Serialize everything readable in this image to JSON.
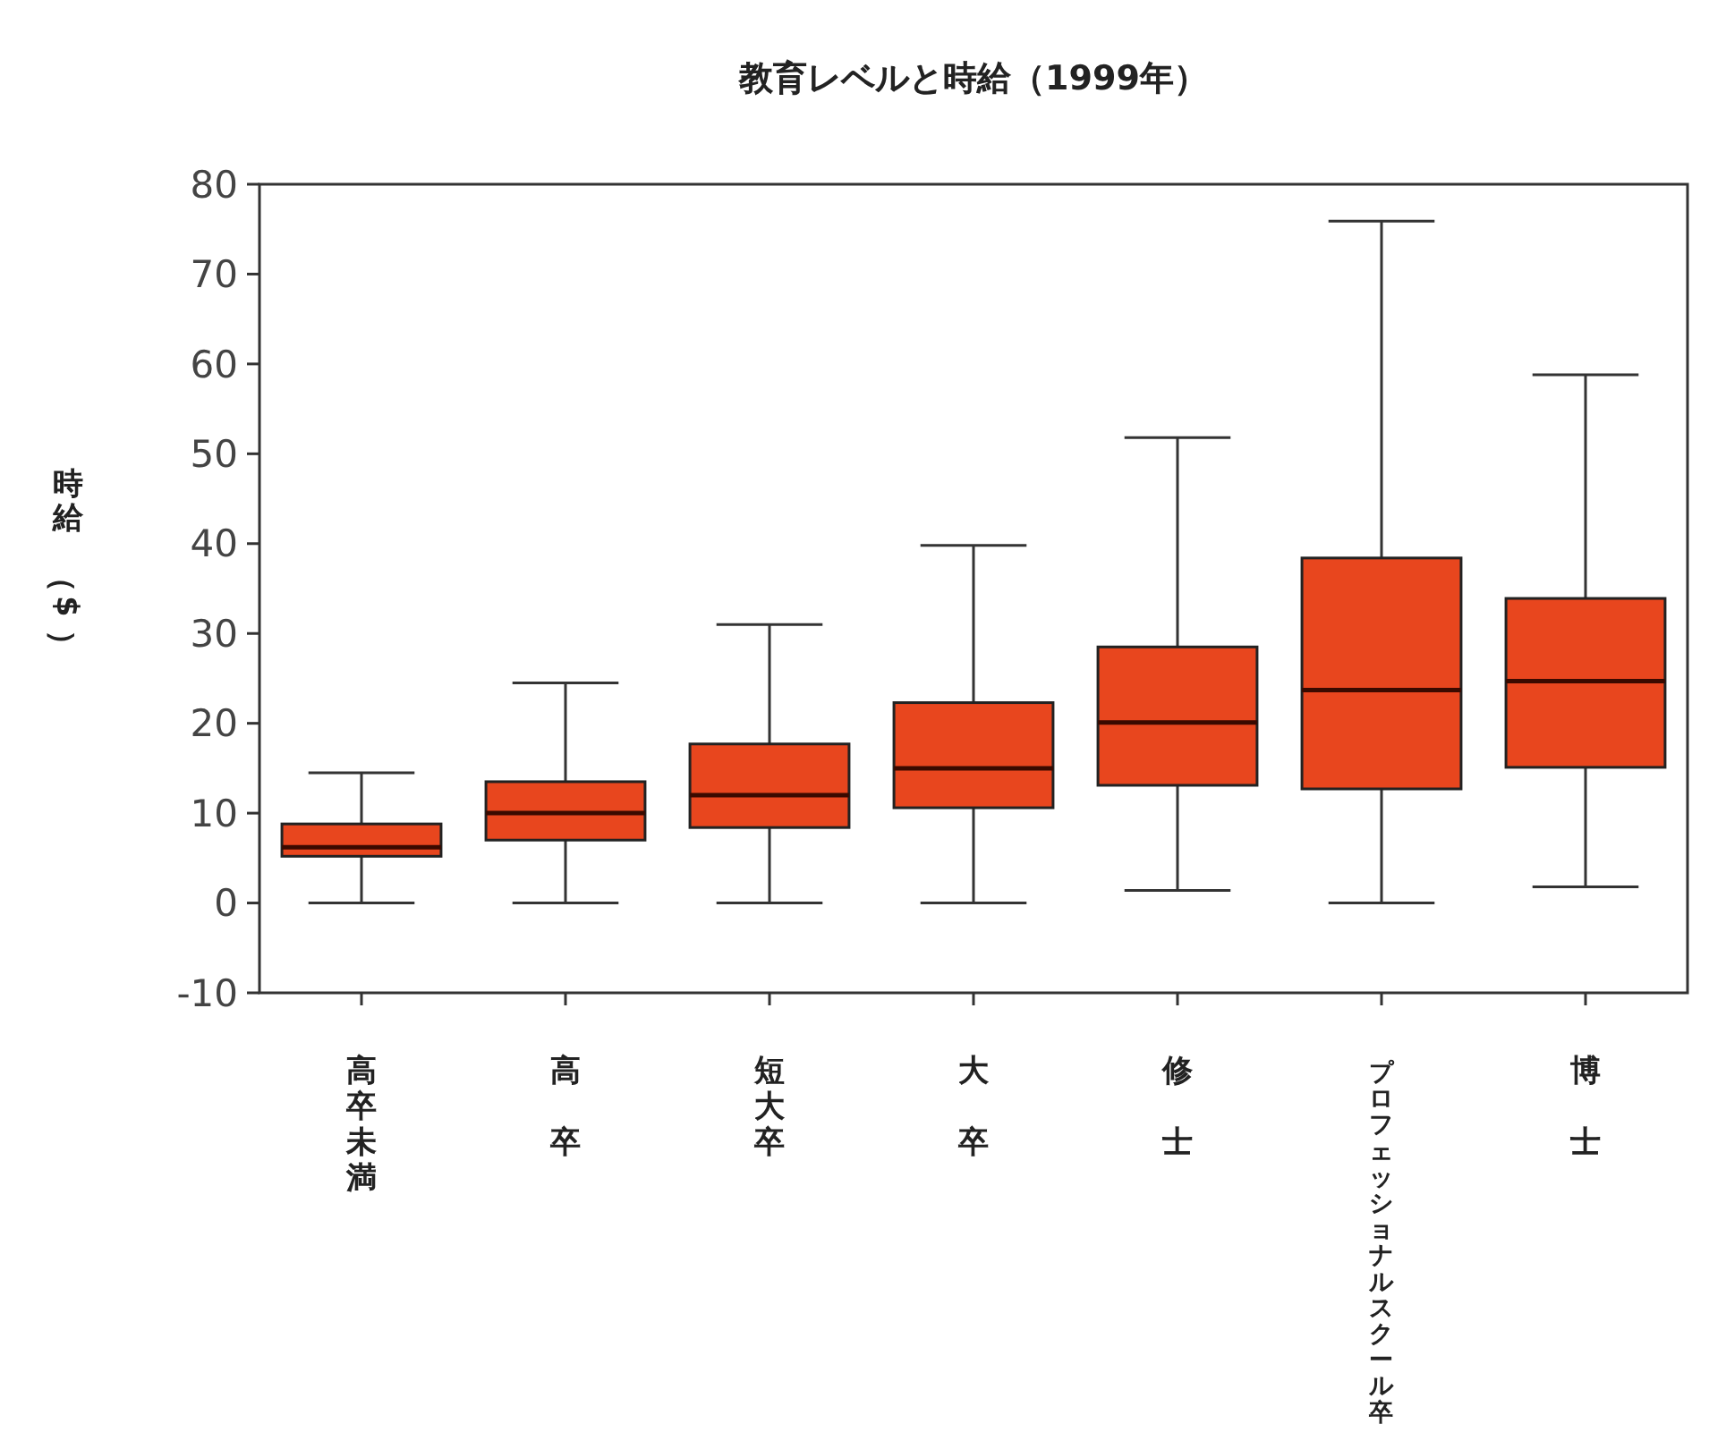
{
  "chart_data": {
    "type": "box",
    "title": "教育レベルと時給（1999年）",
    "ylabel": "時給（$）",
    "categories": [
      "高卒未満",
      "高卒",
      "短大卒",
      "大卒",
      "修士",
      "プロフェッショナルスクール卒",
      "博士"
    ],
    "ylim": [
      -10,
      80
    ],
    "yticks": [
      -10,
      0,
      10,
      20,
      30,
      40,
      50,
      60,
      70,
      80
    ],
    "grid": false,
    "color": "#e8461e",
    "boxes": [
      {
        "low": 0,
        "q1": 5.2,
        "median": 6.2,
        "q3": 8.8,
        "high": 14.5
      },
      {
        "low": 0,
        "q1": 7,
        "median": 10,
        "q3": 13.5,
        "high": 24.5
      },
      {
        "low": 0,
        "q1": 8.4,
        "median": 12,
        "q3": 17.7,
        "high": 31
      },
      {
        "low": 0,
        "q1": 10.6,
        "median": 15,
        "q3": 22.3,
        "high": 39.8
      },
      {
        "low": 1.4,
        "q1": 13.1,
        "median": 20.1,
        "q3": 28.5,
        "high": 51.8
      },
      {
        "low": 0,
        "q1": 12.7,
        "median": 23.7,
        "q3": 38.4,
        "high": 75.9
      },
      {
        "low": 1.8,
        "q1": 15.1,
        "median": 24.7,
        "q3": 33.9,
        "high": 58.8
      }
    ]
  }
}
